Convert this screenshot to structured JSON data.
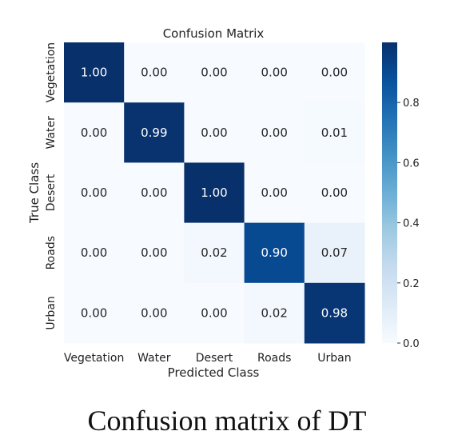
{
  "caption": "Confusion matrix of DT",
  "chart_data": {
    "type": "heatmap",
    "title": "Confusion Matrix",
    "xlabel": "Predicted Class",
    "ylabel": "True Class",
    "x_categories": [
      "Vegetation",
      "Water",
      "Desert",
      "Roads",
      "Urban"
    ],
    "y_categories": [
      "Vegetation",
      "Water",
      "Desert",
      "Roads",
      "Urban"
    ],
    "values": [
      [
        1.0,
        0.0,
        0.0,
        0.0,
        0.0
      ],
      [
        0.0,
        0.99,
        0.0,
        0.0,
        0.01
      ],
      [
        0.0,
        0.0,
        1.0,
        0.0,
        0.0
      ],
      [
        0.0,
        0.0,
        0.02,
        0.9,
        0.07
      ],
      [
        0.0,
        0.0,
        0.0,
        0.02,
        0.98
      ]
    ],
    "value_format": "0.00",
    "colorbar": {
      "ticks": [
        0.0,
        0.2,
        0.4,
        0.6,
        0.8
      ],
      "tick_labels": [
        "0.0",
        "0.2",
        "0.4",
        "0.6",
        "0.8"
      ],
      "range": [
        0.0,
        1.0
      ],
      "colormap": "Blues",
      "low_color": "#f7fbff",
      "high_color": "#08306b"
    }
  }
}
